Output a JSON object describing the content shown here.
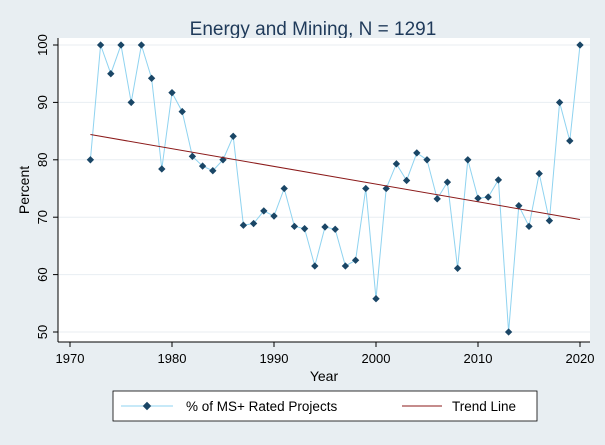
{
  "chart_data": {
    "type": "line",
    "title": "Energy and Mining, N = 1291",
    "xlabel": "Year",
    "ylabel": "Percent",
    "xlim": [
      1970,
      2020
    ],
    "ylim": [
      50,
      100
    ],
    "xticks": [
      1970,
      1980,
      1990,
      2000,
      2010,
      2020
    ],
    "yticks": [
      50,
      60,
      70,
      80,
      90,
      100
    ],
    "grid": "horizontal",
    "legend_position": "bottom",
    "colors": {
      "page_background": "#e8eef2",
      "plot_background": "#ffffff",
      "series_line": "#8fd3f0",
      "series_marker": "#1a4666",
      "trend": "#8b1a1a",
      "grid": "#e8eef2"
    },
    "series": [
      {
        "name": "% of MS+ Rated Projects",
        "x": [
          1972,
          1973,
          1974,
          1975,
          1976,
          1977,
          1978,
          1979,
          1980,
          1981,
          1982,
          1983,
          1984,
          1985,
          1986,
          1987,
          1988,
          1989,
          1990,
          1991,
          1992,
          1993,
          1994,
          1995,
          1996,
          1997,
          1998,
          1999,
          2000,
          2001,
          2002,
          2003,
          2004,
          2005,
          2006,
          2007,
          2008,
          2009,
          2010,
          2011,
          2012,
          2013,
          2014,
          2015,
          2016,
          2017,
          2018,
          2019,
          2020
        ],
        "values": [
          80,
          100,
          95,
          100,
          90,
          100,
          94.2,
          78.4,
          91.7,
          88.4,
          80.6,
          78.9,
          78.1,
          80,
          84.1,
          68.6,
          68.9,
          71.1,
          70.2,
          75,
          68.4,
          68,
          61.5,
          68.3,
          67.9,
          61.5,
          62.5,
          75,
          55.8,
          75,
          79.3,
          76.4,
          81.2,
          80,
          73.2,
          76.1,
          61.1,
          80,
          73.3,
          73.5,
          76.5,
          50,
          72,
          68.4,
          77.6,
          69.4,
          90,
          83.3,
          100
        ]
      }
    ],
    "trend": {
      "name": "Trend Line",
      "x": [
        1972,
        2020
      ],
      "values": [
        84.4,
        69.6
      ]
    }
  }
}
